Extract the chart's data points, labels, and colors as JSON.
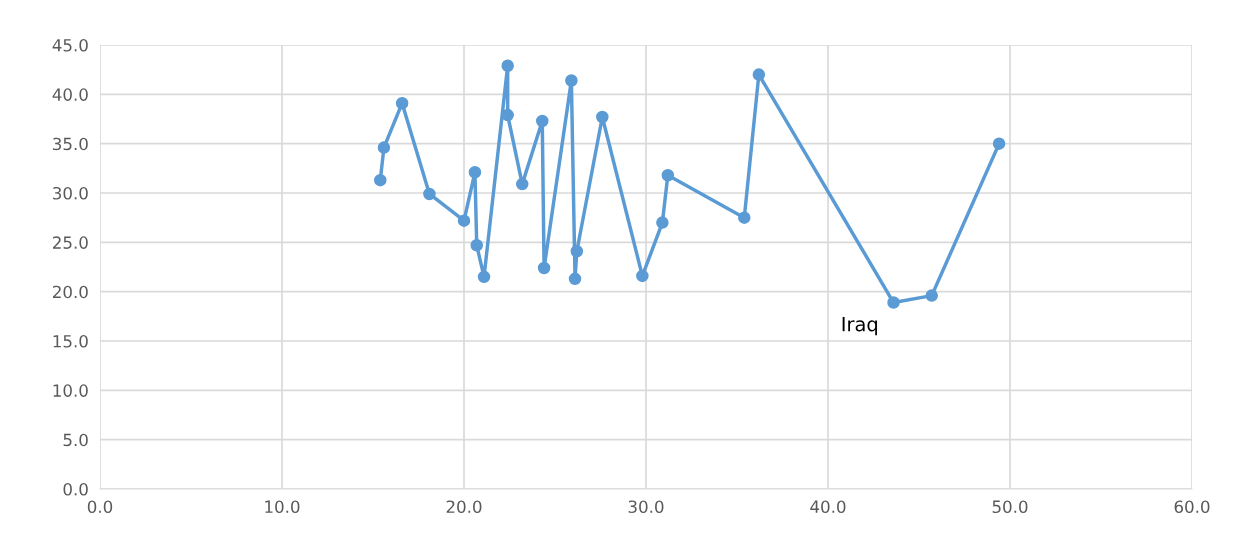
{
  "chart_data": {
    "type": "line",
    "x": [
      15.4,
      15.6,
      16.6,
      18.1,
      20.0,
      20.6,
      20.7,
      21.1,
      22.4,
      22.4,
      23.2,
      24.3,
      24.4,
      25.9,
      26.1,
      26.2,
      27.6,
      29.8,
      30.9,
      31.2,
      35.4,
      36.2,
      43.6,
      45.7,
      49.4
    ],
    "series": [
      {
        "color": "#5b9bd5",
        "values": [
          31.3,
          34.6,
          39.1,
          29.9,
          27.2,
          32.1,
          24.7,
          21.5,
          42.9,
          37.9,
          30.9,
          37.3,
          22.4,
          41.4,
          21.3,
          24.1,
          37.7,
          21.6,
          27.0,
          31.8,
          27.5,
          42.0,
          18.9,
          19.6,
          35.0
        ]
      }
    ],
    "annotations": [
      {
        "text": "Iraq",
        "x": 43.6,
        "y": 18.9
      }
    ],
    "marker": "circle",
    "line_style": "solid",
    "grid": true,
    "xlim": [
      0,
      60
    ],
    "xticks": [
      {
        "value": 0,
        "label": "0.0"
      },
      {
        "value": 10,
        "label": "10.0"
      },
      {
        "value": 20,
        "label": "20.0"
      },
      {
        "value": 30,
        "label": "30.0"
      },
      {
        "value": 40,
        "label": "40.0"
      },
      {
        "value": 50,
        "label": "50.0"
      },
      {
        "value": 60,
        "label": "60.0"
      }
    ],
    "ylim": [
      0,
      45
    ],
    "yticks": [
      {
        "value": 0,
        "label": "0.0"
      },
      {
        "value": 5,
        "label": "5.0"
      },
      {
        "value": 10,
        "label": "10.0"
      },
      {
        "value": 15,
        "label": "15.0"
      },
      {
        "value": 20,
        "label": "20.0"
      },
      {
        "value": 25,
        "label": "25.0"
      },
      {
        "value": 30,
        "label": "30.0"
      },
      {
        "value": 35,
        "label": "35.0"
      },
      {
        "value": 40,
        "label": "40.0"
      },
      {
        "value": 45,
        "label": "45.0"
      }
    ]
  }
}
